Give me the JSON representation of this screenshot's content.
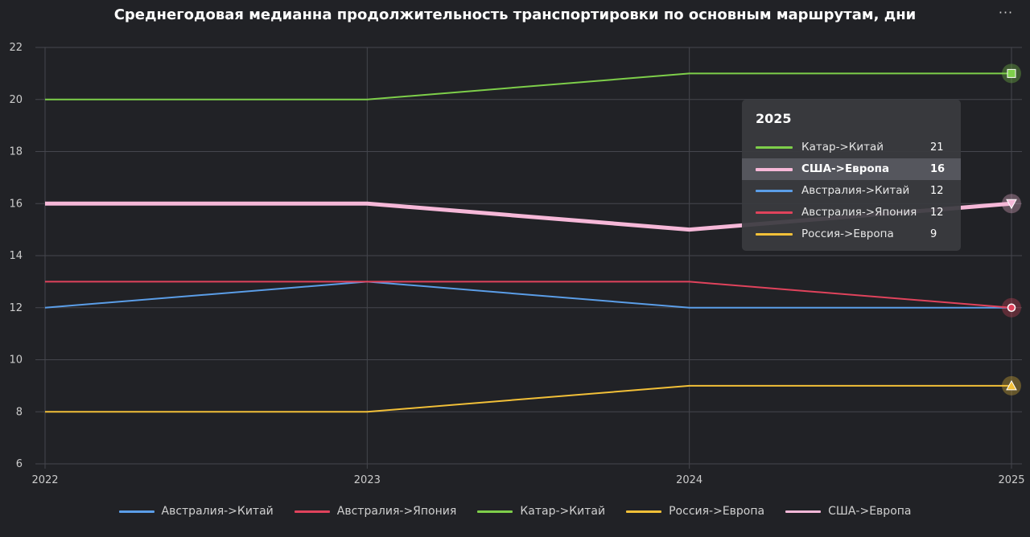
{
  "chart_data": {
    "type": "line",
    "title": "Среднегодовая медианна продолжительность транспортировки по основным маршрутам, дни",
    "x": [
      "2022",
      "2023",
      "2024",
      "2025"
    ],
    "ylim": [
      6,
      22
    ],
    "yticks": [
      "6",
      "8",
      "10",
      "12",
      "14",
      "16",
      "18",
      "20",
      "22"
    ],
    "grid": true,
    "legend_position": "bottom",
    "series": [
      {
        "name": "Австралия->Китай",
        "color": "#5b9ee8",
        "values": [
          12,
          13,
          12,
          12
        ],
        "marker": "none"
      },
      {
        "name": "Австралия->Япония",
        "color": "#e0435c",
        "values": [
          13,
          13,
          13,
          12
        ],
        "marker": "circle"
      },
      {
        "name": "Катар->Китай",
        "color": "#7ecf4a",
        "values": [
          20,
          20,
          21,
          21
        ],
        "marker": "square"
      },
      {
        "name": "Россия->Европа",
        "color": "#f2c038",
        "values": [
          8,
          8,
          9,
          9
        ],
        "marker": "triangle-up"
      },
      {
        "name": "США->Европа",
        "color": "#f6b8d8",
        "values": [
          16,
          16,
          15,
          16
        ],
        "marker": "triangle-down",
        "highlighted": true
      }
    ],
    "tooltip": {
      "title": "2025",
      "rows": [
        {
          "name": "Катар->Китай",
          "value": "21",
          "color": "#7ecf4a"
        },
        {
          "name": "США->Европа",
          "value": "16",
          "color": "#f6b8d8",
          "highlighted": true
        },
        {
          "name": "Австралия->Китай",
          "value": "12",
          "color": "#5b9ee8"
        },
        {
          "name": "Австралия->Япония",
          "value": "12",
          "color": "#e0435c"
        },
        {
          "name": "Россия->Европа",
          "value": "9",
          "color": "#f2c038"
        }
      ]
    }
  },
  "menu": {
    "label": "···"
  }
}
